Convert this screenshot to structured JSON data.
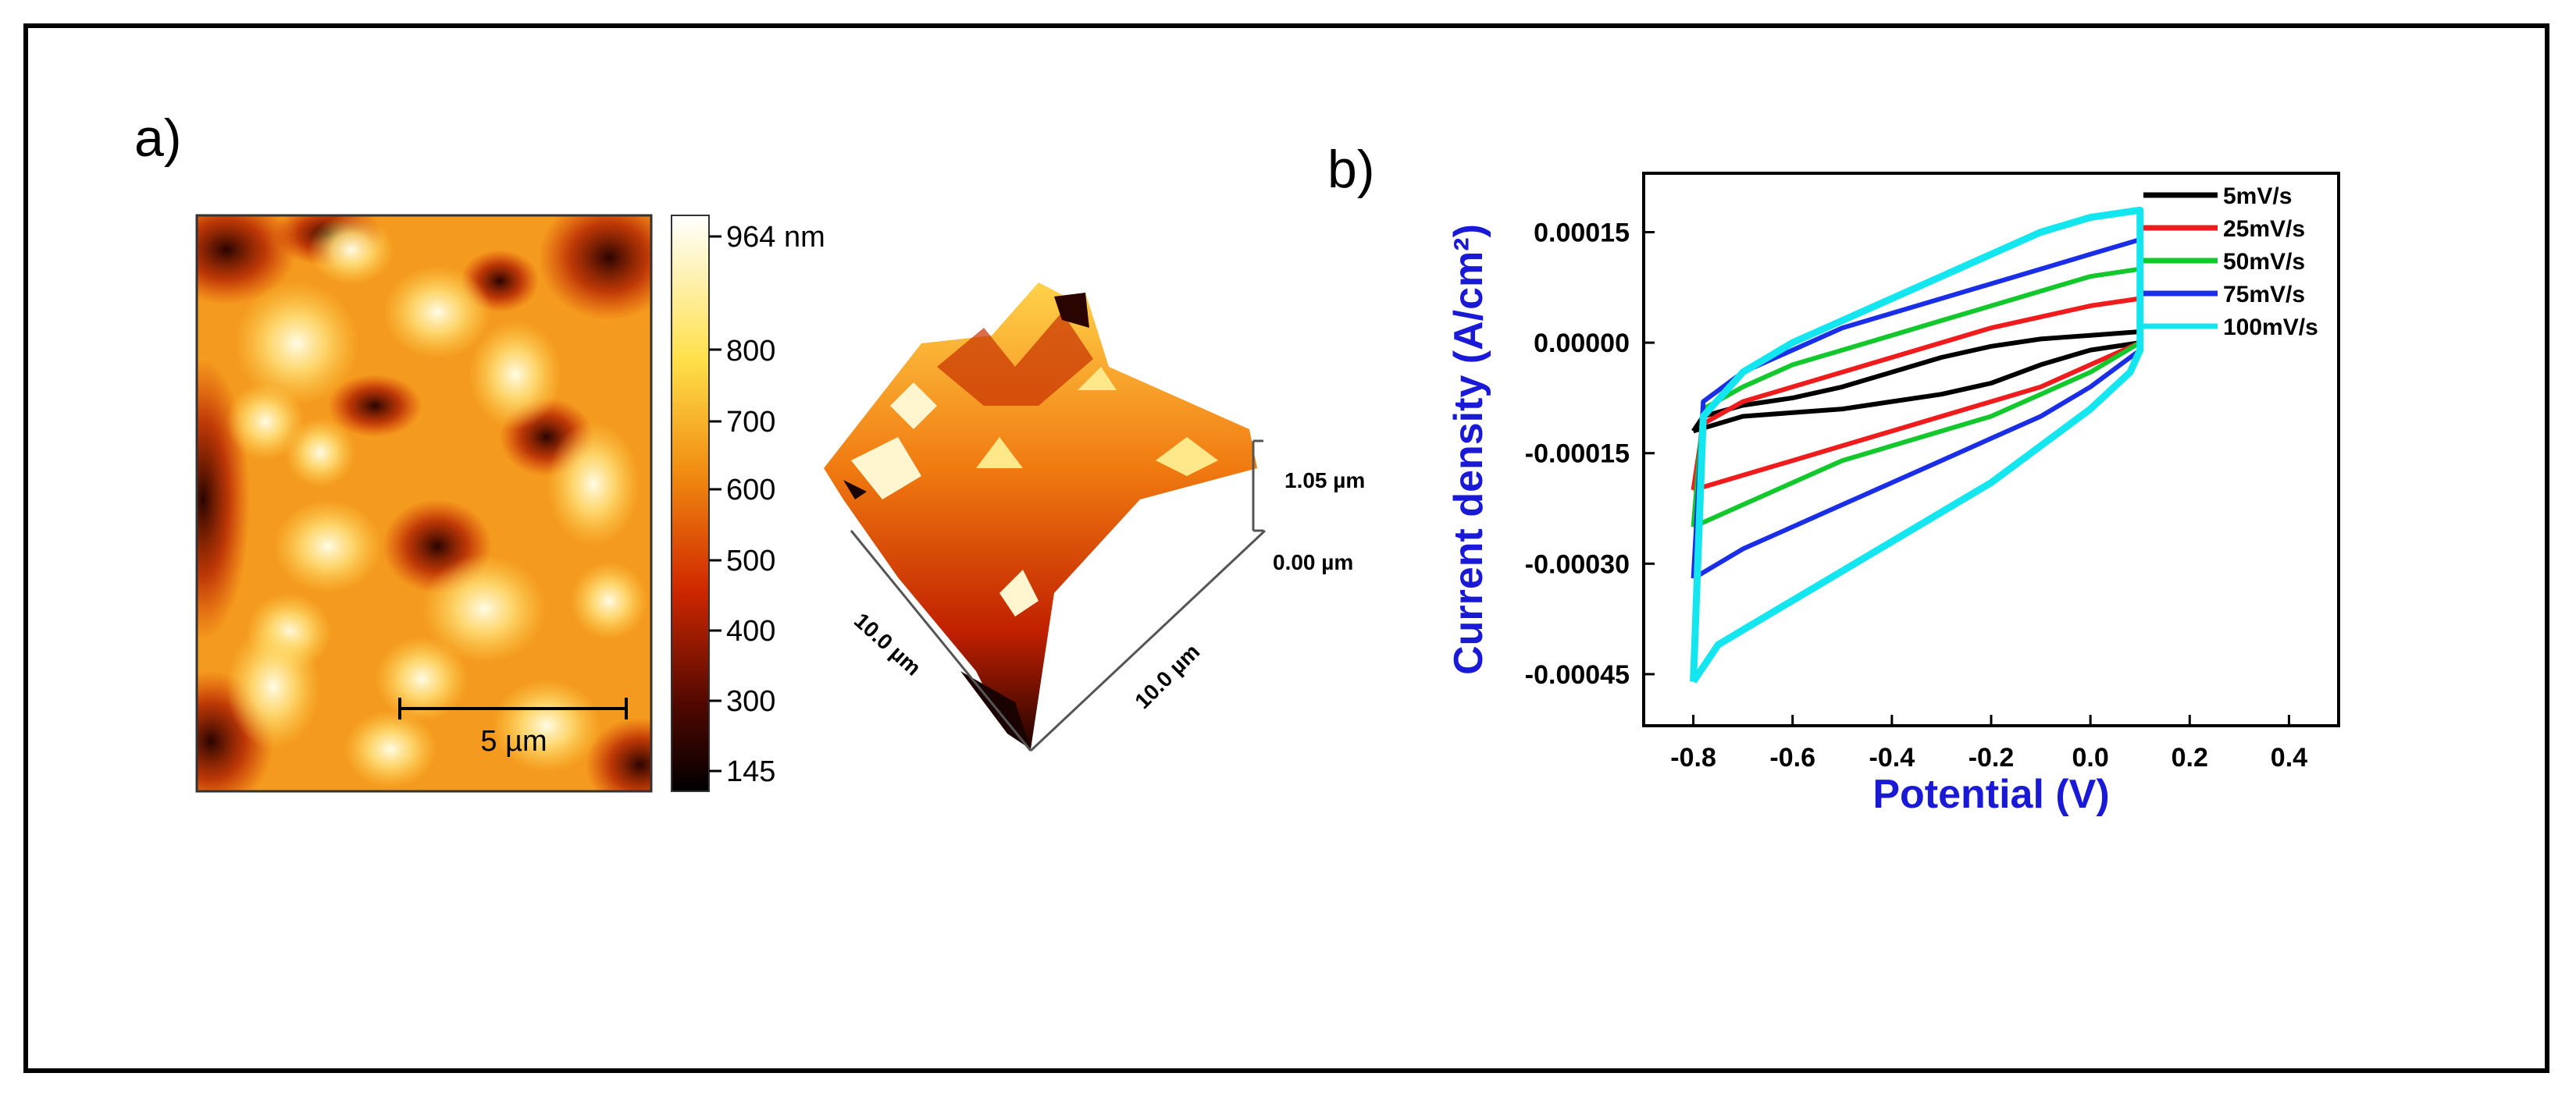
{
  "panel_a": {
    "label": "a)",
    "colorbar": {
      "max_label": "964 nm",
      "ticks": [
        "800",
        "700",
        "600",
        "500",
        "400",
        "300",
        "145"
      ]
    },
    "scale_bar_label": "5 µm",
    "surface_3d": {
      "z_top": "1.05 µm",
      "z_bottom": "0.00 µm",
      "x_axis": "10.0 µm",
      "y_axis": "10.0 µm"
    },
    "colors": {
      "dark": "#1a0200",
      "mid": "#d02800",
      "orange": "#f07a10",
      "yellow": "#ffd24a",
      "white": "#fffce6"
    }
  },
  "panel_b": {
    "label": "b)"
  },
  "chart_data": {
    "type": "line",
    "title": "",
    "xlabel": "Potential (V)",
    "ylabel": "Current density (A/cm²)",
    "xlim": [
      -0.9,
      0.5
    ],
    "ylim": [
      -0.00052,
      0.00023
    ],
    "x_ticks": [
      -0.8,
      -0.6,
      -0.4,
      -0.2,
      0.0,
      0.2,
      0.4
    ],
    "x_tick_labels": [
      "-0.8",
      "-0.6",
      "-0.4",
      "-0.2",
      "0.0",
      "0.2",
      "0.4"
    ],
    "y_ticks": [
      0.00015,
      0.0,
      -0.00015,
      -0.0003,
      -0.00045
    ],
    "y_tick_labels": [
      "0.00015",
      "0.00000",
      "-0.00015",
      "-0.00030",
      "-0.00045"
    ],
    "legend_position": "top-right",
    "series": [
      {
        "name": "5mV/s",
        "color": "#000000",
        "x": [
          -0.8,
          -0.7,
          -0.6,
          -0.5,
          -0.4,
          -0.3,
          -0.2,
          -0.1,
          0.0,
          0.1,
          0.1,
          0.0,
          -0.1,
          -0.2,
          -0.3,
          -0.4,
          -0.5,
          -0.6,
          -0.7,
          -0.78,
          -0.8
        ],
        "y": [
          -0.00012,
          -0.0001,
          -9.5e-05,
          -9e-05,
          -8e-05,
          -7e-05,
          -5.5e-05,
          -3e-05,
          -1e-05,
          0.0,
          1.5e-05,
          1e-05,
          5e-06,
          -5e-06,
          -2e-05,
          -4e-05,
          -6e-05,
          -7.5e-05,
          -8.5e-05,
          -0.0001,
          -0.00012
        ]
      },
      {
        "name": "25mV/s",
        "color": "#ee1c1c",
        "x": [
          -0.8,
          -0.7,
          -0.6,
          -0.5,
          -0.4,
          -0.3,
          -0.2,
          -0.1,
          0.0,
          0.1,
          0.1,
          0.0,
          -0.1,
          -0.2,
          -0.3,
          -0.4,
          -0.5,
          -0.6,
          -0.7,
          -0.78,
          -0.8
        ],
        "y": [
          -0.0002,
          -0.00018,
          -0.00016,
          -0.00014,
          -0.00012,
          -0.0001,
          -8e-05,
          -6e-05,
          -3e-05,
          0.0,
          6e-05,
          5e-05,
          3.5e-05,
          2e-05,
          0.0,
          -2e-05,
          -4e-05,
          -6e-05,
          -8e-05,
          -0.00011,
          -0.0002
        ]
      },
      {
        "name": "50mV/s",
        "color": "#12c82c",
        "x": [
          -0.8,
          -0.7,
          -0.6,
          -0.5,
          -0.4,
          -0.3,
          -0.2,
          -0.1,
          0.0,
          0.1,
          0.1,
          0.0,
          -0.1,
          -0.2,
          -0.3,
          -0.4,
          -0.5,
          -0.6,
          -0.7,
          -0.78,
          -0.8
        ],
        "y": [
          -0.00025,
          -0.00022,
          -0.00019,
          -0.00016,
          -0.00014,
          -0.00012,
          -0.0001,
          -7e-05,
          -4e-05,
          0.0,
          0.0001,
          9e-05,
          7e-05,
          5e-05,
          3e-05,
          1e-05,
          -1e-05,
          -3e-05,
          -6e-05,
          -9e-05,
          -0.00025
        ]
      },
      {
        "name": "75mV/s",
        "color": "#1a2ee6",
        "x": [
          -0.8,
          -0.7,
          -0.6,
          -0.5,
          -0.4,
          -0.3,
          -0.2,
          -0.1,
          0.0,
          0.1,
          0.1,
          0.0,
          -0.1,
          -0.2,
          -0.3,
          -0.4,
          -0.5,
          -0.6,
          -0.7,
          -0.78,
          -0.8
        ],
        "y": [
          -0.00032,
          -0.00028,
          -0.00025,
          -0.00022,
          -0.00019,
          -0.00016,
          -0.00013,
          -0.0001,
          -6e-05,
          -1e-05,
          0.00014,
          0.00012,
          0.0001,
          8e-05,
          6e-05,
          4e-05,
          2e-05,
          -1e-05,
          -4e-05,
          -8e-05,
          -0.00032
        ]
      },
      {
        "name": "100mV/s",
        "color": "#14e6f0",
        "x": [
          -0.8,
          -0.75,
          -0.7,
          -0.6,
          -0.5,
          -0.4,
          -0.3,
          -0.2,
          -0.1,
          0.0,
          0.08,
          0.1,
          0.1,
          0.0,
          -0.1,
          -0.2,
          -0.3,
          -0.4,
          -0.5,
          -0.6,
          -0.7,
          -0.78,
          -0.8
        ],
        "y": [
          -0.00046,
          -0.00041,
          -0.00039,
          -0.00035,
          -0.00031,
          -0.00027,
          -0.00023,
          -0.00019,
          -0.00014,
          -9e-05,
          -4e-05,
          -1e-05,
          0.00018,
          0.00017,
          0.00015,
          0.00012,
          9e-05,
          6e-05,
          3e-05,
          0.0,
          -4e-05,
          -0.0001,
          -0.00046
        ]
      }
    ]
  }
}
